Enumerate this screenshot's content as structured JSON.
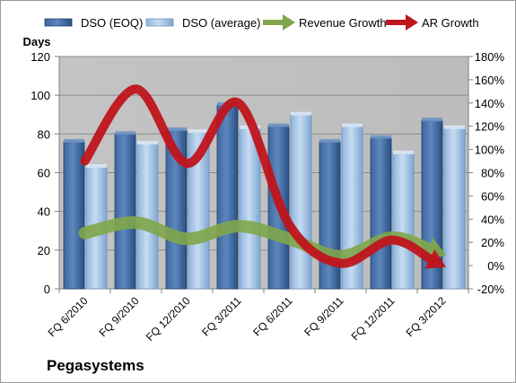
{
  "chart_data": {
    "type": "bar",
    "title": "Pegasystems",
    "ylabel": "Days",
    "categories": [
      "FQ 6/2010",
      "FQ 9/2010",
      "FQ 12/2010",
      "FQ 3/2011",
      "FQ 6/2011",
      "FQ 9/2011",
      "FQ 12/2011",
      "FQ 3/2012"
    ],
    "series": [
      {
        "name": "DSO (EOQ)",
        "type": "bar",
        "axis": "left",
        "color": "#2f5a8e",
        "values": [
          76,
          80,
          82,
          95,
          84,
          76,
          78,
          87
        ]
      },
      {
        "name": "DSO (average)",
        "type": "bar",
        "axis": "left",
        "color": "#a9c8ea",
        "values": [
          63,
          75,
          81,
          83,
          90,
          84,
          70,
          83
        ]
      },
      {
        "name": "Revenue Growth",
        "type": "line-arrow",
        "axis": "right",
        "color": "#7fa64a",
        "values": [
          0.28,
          0.37,
          0.23,
          0.34,
          0.23,
          0.08,
          0.24,
          0.1
        ]
      },
      {
        "name": "AR Growth",
        "type": "line-arrow",
        "axis": "right",
        "color": "#c0141c",
        "values": [
          0.9,
          1.52,
          0.88,
          1.4,
          0.35,
          0.02,
          0.22,
          0.0
        ]
      }
    ],
    "ylim": [
      0,
      120
    ],
    "y_ticks": [
      0,
      20,
      40,
      60,
      80,
      100,
      120
    ],
    "y2lim": [
      -0.2,
      1.8
    ],
    "y2_ticks": [
      "-20%",
      "0%",
      "20%",
      "40%",
      "60%",
      "80%",
      "100%",
      "120%",
      "140%",
      "160%",
      "180%"
    ],
    "grid": true,
    "legend_position": "top",
    "plot_background": "#c0c0c0"
  }
}
